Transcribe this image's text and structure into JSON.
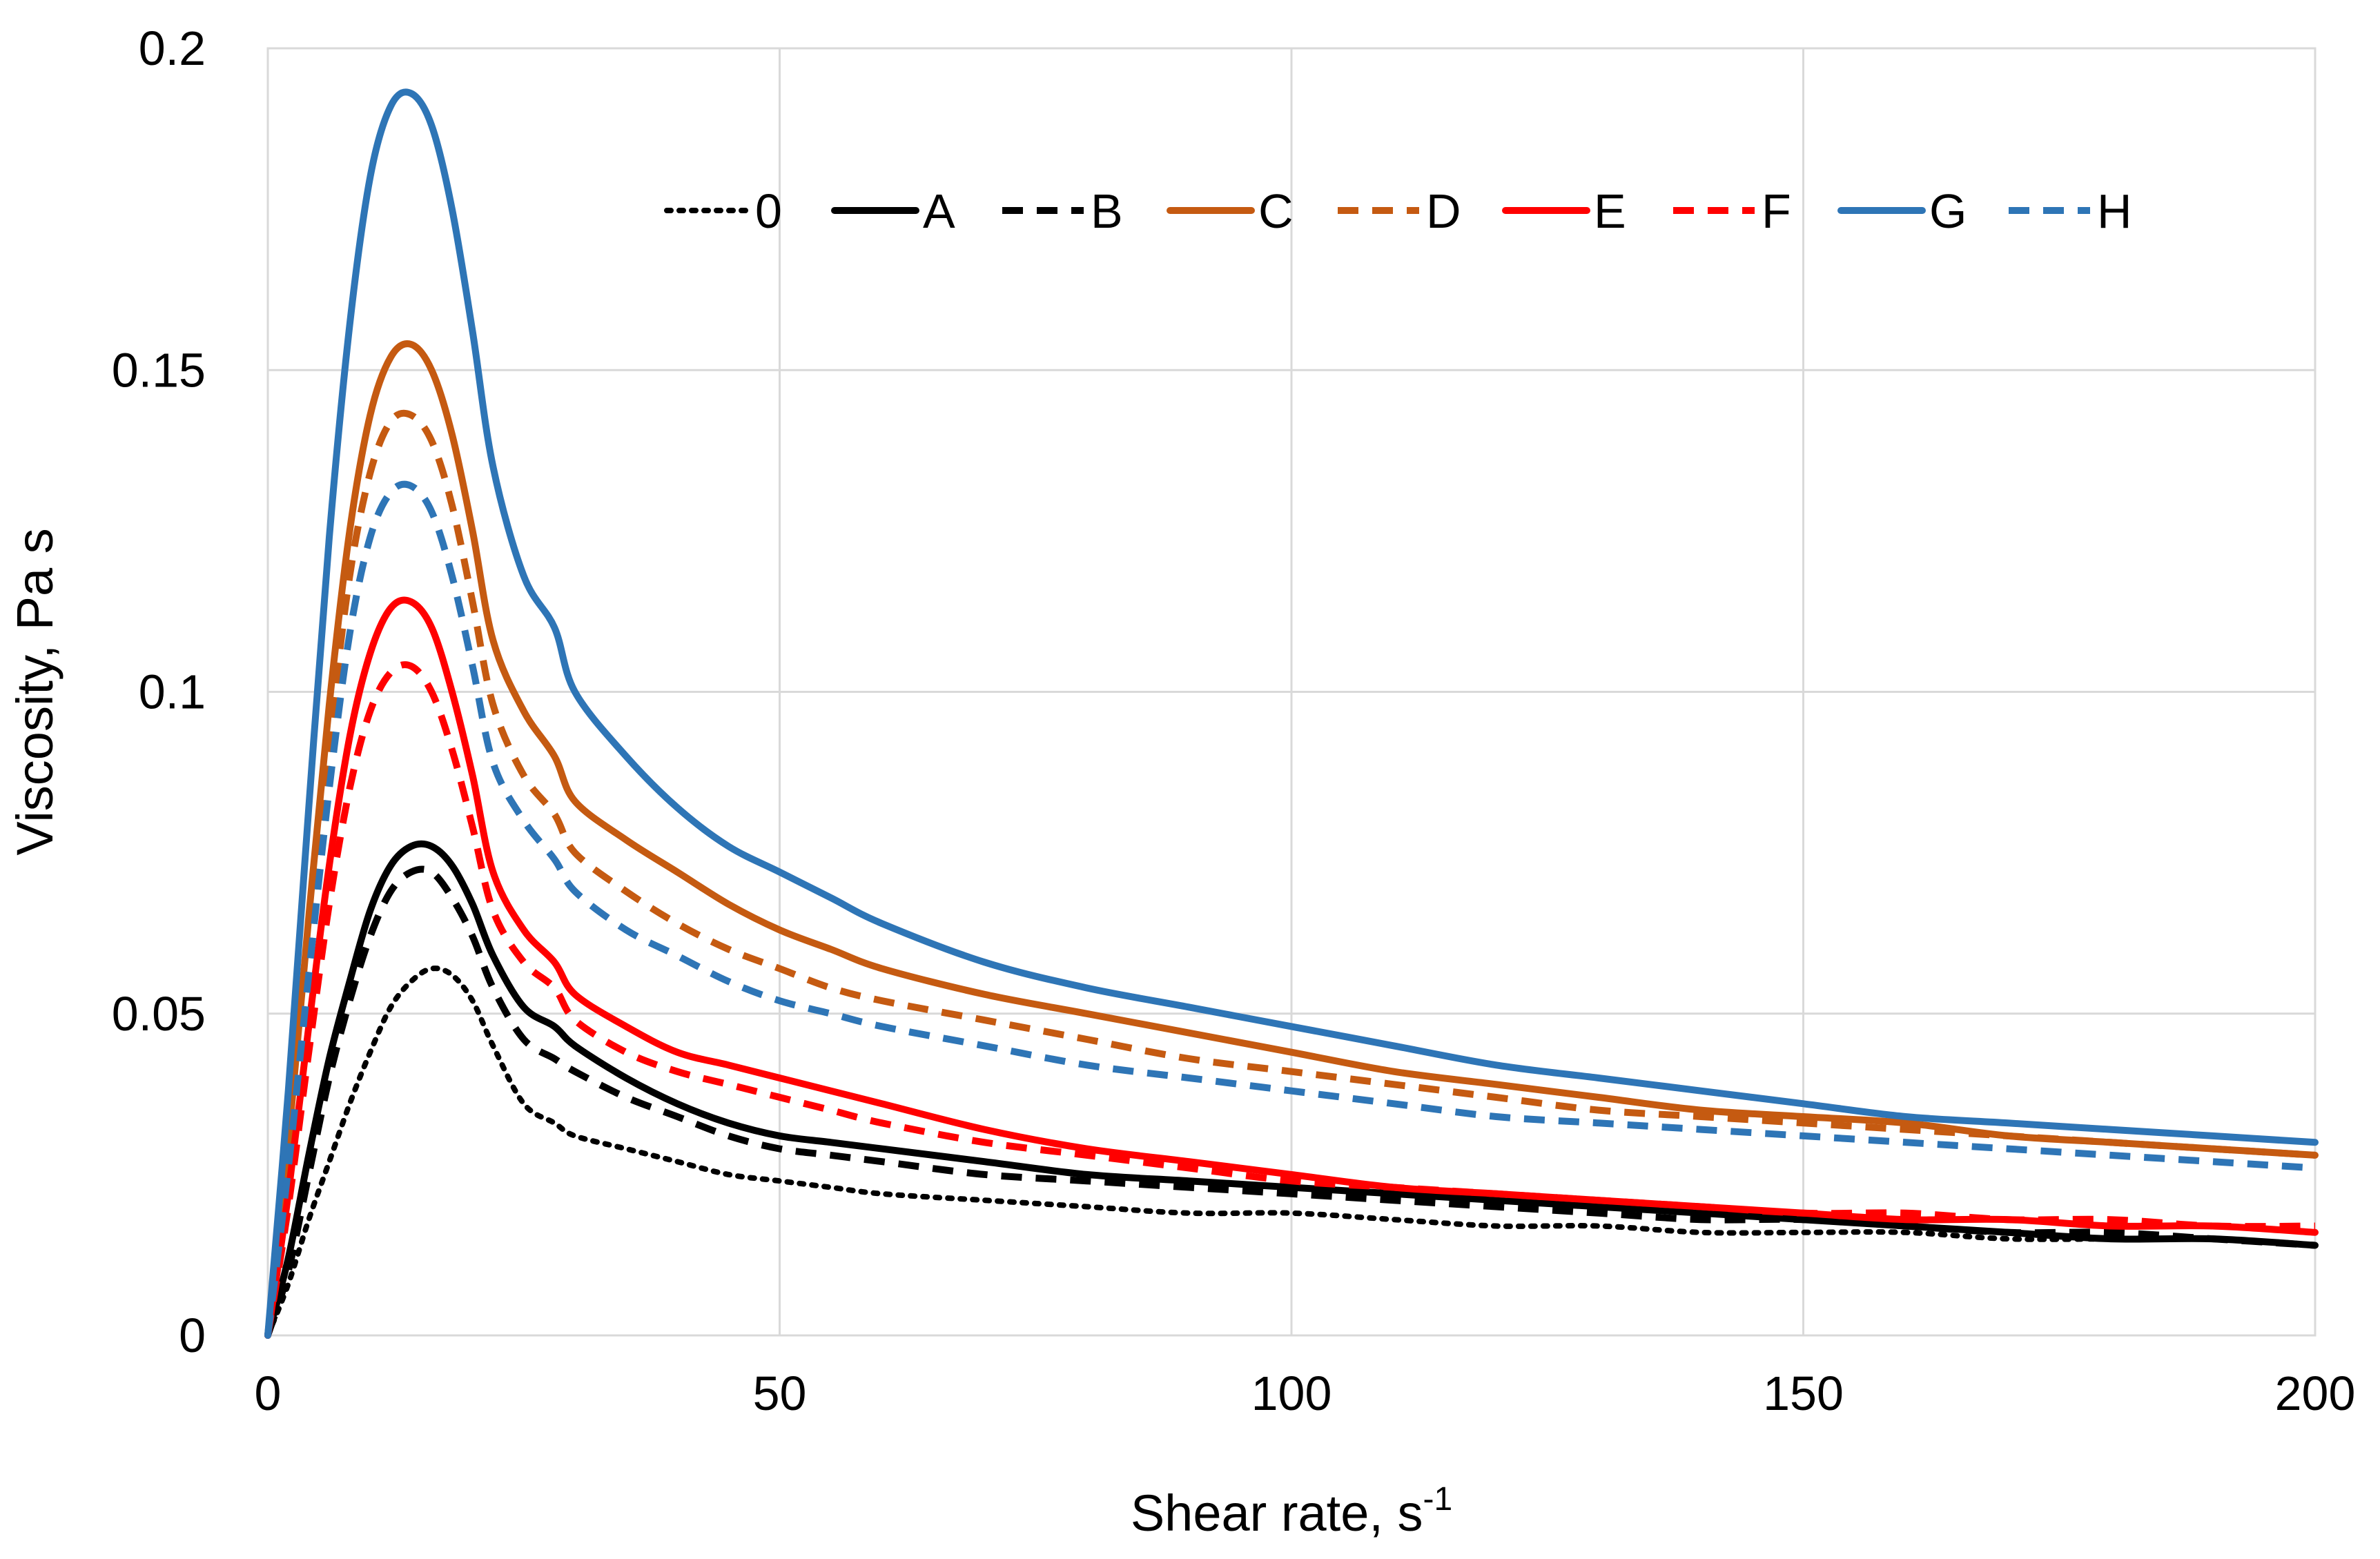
{
  "chart_data": {
    "type": "line",
    "title": "",
    "xlabel": "Shear rate, s",
    "xlabel_superscript": "-1",
    "ylabel": "Viscosity, Pa s",
    "xlim": [
      0,
      200
    ],
    "ylim": [
      0,
      0.2
    ],
    "x_ticks": [
      0,
      50,
      100,
      150,
      200
    ],
    "x_tick_labels": [
      "0",
      "50",
      "100",
      "150",
      "200"
    ],
    "y_ticks": [
      0,
      0.05,
      0.1,
      0.15,
      0.2
    ],
    "y_tick_labels": [
      "0",
      "0.05",
      "0.1",
      "0.15",
      "0.2"
    ],
    "grid": true,
    "legend_position": "top-right",
    "x": [
      0,
      2,
      4,
      6,
      8,
      10,
      12,
      14,
      16,
      18,
      20,
      22,
      25,
      28,
      30,
      35,
      40,
      45,
      50,
      55,
      60,
      70,
      80,
      90,
      100,
      110,
      120,
      130,
      140,
      150,
      160,
      170,
      180,
      190,
      200
    ],
    "series": [
      {
        "name": "0",
        "color": "#000000",
        "dash": "dot",
        "values": [
          0,
          0.008,
          0.018,
          0.027,
          0.036,
          0.044,
          0.051,
          0.055,
          0.057,
          0.056,
          0.052,
          0.045,
          0.036,
          0.033,
          0.031,
          0.029,
          0.027,
          0.025,
          0.024,
          0.023,
          0.022,
          0.021,
          0.02,
          0.019,
          0.019,
          0.018,
          0.017,
          0.017,
          0.016,
          0.016,
          0.016,
          0.015,
          0.015,
          0.015,
          0.014
        ]
      },
      {
        "name": "A",
        "color": "#000000",
        "dash": "solid",
        "values": [
          0,
          0.012,
          0.028,
          0.043,
          0.055,
          0.066,
          0.073,
          0.076,
          0.076,
          0.073,
          0.067,
          0.059,
          0.051,
          0.048,
          0.045,
          0.04,
          0.036,
          0.033,
          0.031,
          0.03,
          0.029,
          0.027,
          0.025,
          0.024,
          0.023,
          0.022,
          0.021,
          0.02,
          0.019,
          0.018,
          0.017,
          0.016,
          0.015,
          0.015,
          0.014
        ]
      },
      {
        "name": "B",
        "color": "#000000",
        "dash": "dash",
        "values": [
          0,
          0.01,
          0.025,
          0.04,
          0.052,
          0.062,
          0.069,
          0.072,
          0.072,
          0.068,
          0.062,
          0.054,
          0.046,
          0.043,
          0.041,
          0.037,
          0.034,
          0.031,
          0.029,
          0.028,
          0.027,
          0.025,
          0.024,
          0.023,
          0.022,
          0.021,
          0.02,
          0.019,
          0.018,
          0.018,
          0.017,
          0.016,
          0.016,
          0.015,
          0.014
        ]
      },
      {
        "name": "C",
        "color": "#c55a11",
        "dash": "solid",
        "values": [
          0,
          0.03,
          0.065,
          0.098,
          0.125,
          0.143,
          0.152,
          0.154,
          0.15,
          0.14,
          0.125,
          0.108,
          0.097,
          0.09,
          0.083,
          0.077,
          0.072,
          0.067,
          0.063,
          0.06,
          0.057,
          0.053,
          0.05,
          0.047,
          0.044,
          0.041,
          0.039,
          0.037,
          0.035,
          0.034,
          0.033,
          0.031,
          0.03,
          0.029,
          0.028
        ]
      },
      {
        "name": "D",
        "color": "#c55a11",
        "dash": "dash",
        "values": [
          0,
          0.028,
          0.06,
          0.092,
          0.118,
          0.134,
          0.142,
          0.143,
          0.139,
          0.129,
          0.114,
          0.098,
          0.087,
          0.081,
          0.075,
          0.069,
          0.064,
          0.06,
          0.057,
          0.054,
          0.052,
          0.049,
          0.046,
          0.043,
          0.041,
          0.039,
          0.037,
          0.035,
          0.034,
          0.033,
          0.032,
          0.031,
          0.03,
          0.029,
          0.028
        ]
      },
      {
        "name": "E",
        "color": "#ff0000",
        "dash": "solid",
        "values": [
          0,
          0.022,
          0.048,
          0.073,
          0.093,
          0.106,
          0.113,
          0.114,
          0.11,
          0.1,
          0.087,
          0.072,
          0.063,
          0.058,
          0.053,
          0.048,
          0.044,
          0.042,
          0.04,
          0.038,
          0.036,
          0.032,
          0.029,
          0.027,
          0.025,
          0.023,
          0.022,
          0.021,
          0.02,
          0.019,
          0.018,
          0.018,
          0.017,
          0.017,
          0.016
        ]
      },
      {
        "name": "F",
        "color": "#ff0000",
        "dash": "dash",
        "values": [
          0,
          0.02,
          0.044,
          0.067,
          0.085,
          0.097,
          0.103,
          0.104,
          0.1,
          0.091,
          0.079,
          0.066,
          0.058,
          0.054,
          0.049,
          0.044,
          0.041,
          0.039,
          0.037,
          0.035,
          0.033,
          0.03,
          0.028,
          0.026,
          0.024,
          0.023,
          0.022,
          0.021,
          0.02,
          0.019,
          0.019,
          0.018,
          0.018,
          0.017,
          0.017
        ]
      },
      {
        "name": "G",
        "color": "#2e75b6",
        "dash": "solid",
        "values": [
          0,
          0.038,
          0.082,
          0.124,
          0.157,
          0.18,
          0.191,
          0.193,
          0.188,
          0.175,
          0.156,
          0.135,
          0.118,
          0.11,
          0.1,
          0.09,
          0.082,
          0.076,
          0.072,
          0.068,
          0.064,
          0.058,
          0.054,
          0.051,
          0.048,
          0.045,
          0.042,
          0.04,
          0.038,
          0.036,
          0.034,
          0.033,
          0.032,
          0.031,
          0.03
        ]
      },
      {
        "name": "H",
        "color": "#2e75b6",
        "dash": "dash",
        "values": [
          0,
          0.026,
          0.056,
          0.085,
          0.109,
          0.124,
          0.131,
          0.132,
          0.128,
          0.118,
          0.104,
          0.089,
          0.08,
          0.074,
          0.069,
          0.063,
          0.059,
          0.055,
          0.052,
          0.05,
          0.048,
          0.045,
          0.042,
          0.04,
          0.038,
          0.036,
          0.034,
          0.033,
          0.032,
          0.031,
          0.03,
          0.029,
          0.028,
          0.027,
          0.026
        ]
      }
    ]
  }
}
